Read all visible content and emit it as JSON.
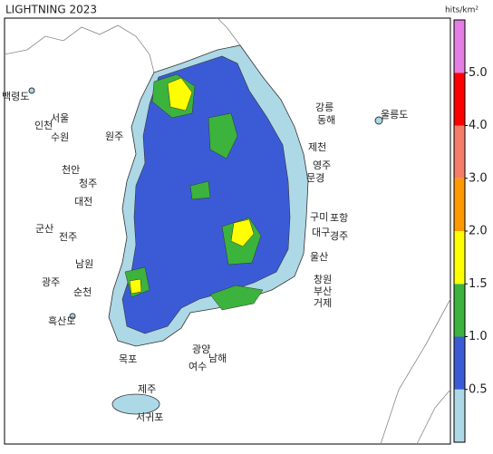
{
  "title": "LIGHTNING 2023",
  "unit": "hits/km²",
  "colorbar": {
    "colors": [
      "#add8e6",
      "#3b5bd6",
      "#3cb33c",
      "#ffff00",
      "#ff9900",
      "#f47c68",
      "#ff0000",
      "#e47de4"
    ],
    "ticks": [
      0.5,
      {
        "value": 1,
        "label": "1.0"
      },
      1.5,
      {
        "value": 2,
        "label": "2.0"
      },
      {
        "value": 3,
        "label": "3.0"
      },
      {
        "value": 4,
        "label": "4.0"
      },
      {
        "value": 5,
        "label": "5.0"
      }
    ]
  },
  "places": [
    "백령도",
    "인천",
    "서울",
    "수원",
    "원주",
    "강릉",
    "동해",
    "울릉도",
    "제천",
    "영주",
    "문경",
    "천안",
    "청주",
    "대전",
    "구미",
    "포항",
    "대구",
    "경주",
    "군산",
    "전주",
    "울산",
    "남원",
    "광주",
    "순천",
    "창원",
    "부산",
    "거제",
    "흑산도",
    "광양",
    "목포",
    "남해",
    "여수",
    "제주",
    "서귀포"
  ]
}
